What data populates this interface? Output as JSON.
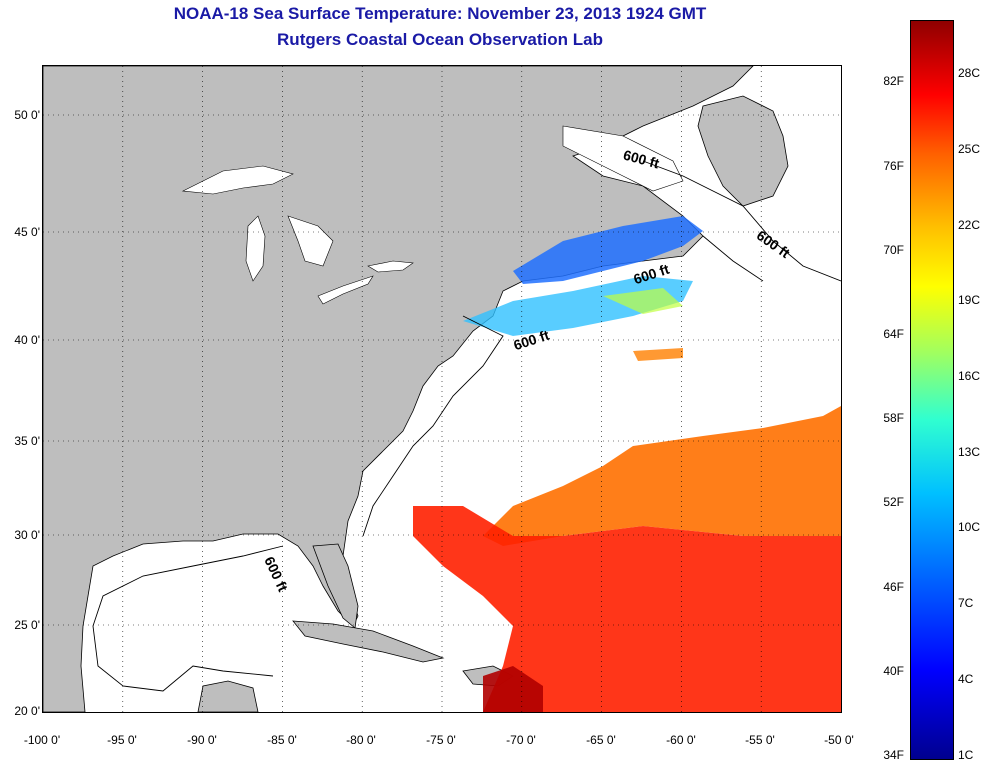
{
  "title": {
    "line1": "NOAA-18 Sea Surface Temperature:  November 23, 2013 1924 GMT",
    "line2": "Rutgers Coastal Ocean Observation Lab"
  },
  "map": {
    "lon_range": [
      -100,
      -50
    ],
    "lat_range": [
      20,
      52
    ],
    "lat_ticks": [
      "50 0'",
      "45 0'",
      "40 0'",
      "35 0'",
      "30 0'",
      "25 0'",
      "20 0'"
    ],
    "lon_ticks": [
      "-100 0'",
      "-95 0'",
      "-90 0'",
      "-85 0'",
      "-80 0'",
      "-75 0'",
      "-70 0'",
      "-65 0'",
      "-60 0'",
      "-55 0'",
      "-50 0'"
    ],
    "contour_labels": [
      "600 ft",
      "600 ft",
      "600 ft",
      "600 ft",
      "600 ft"
    ],
    "grid": "dotted",
    "land_color": "#bebebe",
    "ocean_no_data_color": "#ffffff"
  },
  "colorbar": {
    "fahrenheit": [
      "82F",
      "76F",
      "70F",
      "64F",
      "58F",
      "52F",
      "46F",
      "40F",
      "34F"
    ],
    "celsius": [
      "28C",
      "25C",
      "22C",
      "19C",
      "16C",
      "13C",
      "10C",
      "7C",
      "4C",
      "1C"
    ],
    "range_f": [
      34,
      86
    ],
    "range_c": [
      1,
      30
    ]
  }
}
